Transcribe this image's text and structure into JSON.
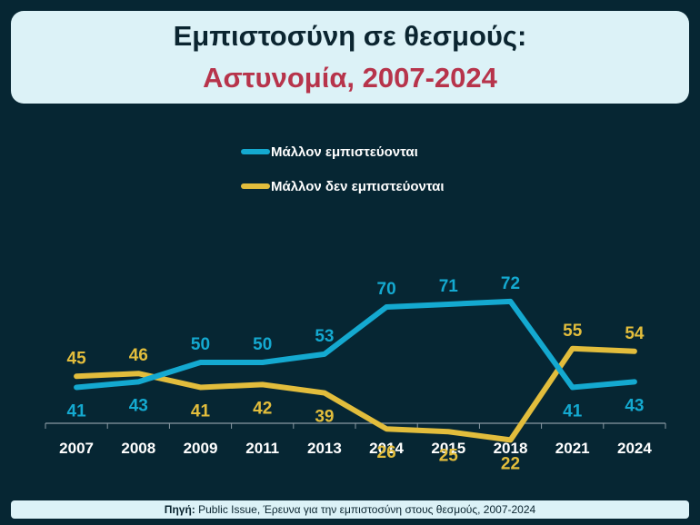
{
  "title": {
    "line1": "Εμπιστοσύνη σε θεσμούς:",
    "line2": "Αστυνομία, 2007-2024"
  },
  "source": {
    "label": "Πηγή:",
    "text": " Public Issue, Έρευνα για την εμπιστοσύνη στους θεσμούς, 2007-2024"
  },
  "colors": {
    "background": "#062633",
    "trust": "#14a9d0",
    "distrust": "#e2bd3c",
    "title_accent": "#b7344b"
  },
  "chart_data": {
    "type": "line",
    "categories": [
      "2007",
      "2008",
      "2009",
      "2011",
      "2013",
      "2014",
      "2015",
      "2018",
      "2021",
      "2024"
    ],
    "series": [
      {
        "name": "Μάλλον εμπιστεύονται",
        "values": [
          41,
          43,
          50,
          50,
          53,
          70,
          71,
          72,
          41,
          43
        ]
      },
      {
        "name": "Μάλλον δεν εμπιστεύονται",
        "values": [
          45,
          46,
          41,
          42,
          39,
          26,
          25,
          22,
          55,
          54
        ]
      }
    ],
    "grid": false,
    "legend_position": "top-center"
  }
}
